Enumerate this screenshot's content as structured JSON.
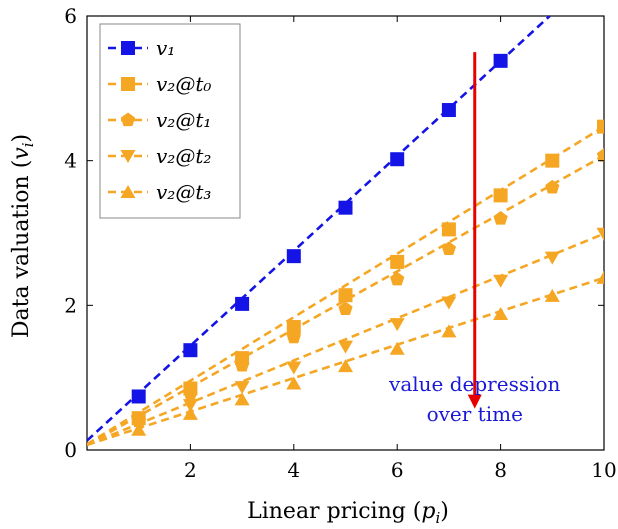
{
  "chart_data": {
    "type": "line",
    "xlabel": "Linear pricing (p_i)",
    "ylabel": "Data valuation (v_i)",
    "xlim": [
      0,
      10
    ],
    "ylim": [
      0,
      6
    ],
    "x_ticks": [
      "2",
      "4",
      "6",
      "8",
      "10"
    ],
    "y_ticks": [
      "0",
      "2",
      "4",
      "6"
    ],
    "grid": false,
    "legend_position": "top-left",
    "series": [
      {
        "name": "v_1",
        "color": "#1414e6",
        "marker": "square",
        "x": [
          1,
          2,
          3,
          4,
          5,
          6,
          7,
          8
        ],
        "y": [
          0.74,
          1.38,
          2.02,
          2.68,
          3.35,
          4.02,
          4.7,
          5.38
        ],
        "trend": [
          [
            0,
            0.13
          ],
          [
            8.95,
            6.0
          ]
        ]
      },
      {
        "name": "v_2@t_0",
        "color": "#f5a623",
        "marker": "square",
        "x": [
          1,
          2,
          3,
          4,
          5,
          6,
          7,
          8,
          9,
          10
        ],
        "y": [
          0.44,
          0.85,
          1.27,
          1.7,
          2.14,
          2.6,
          3.05,
          3.52,
          4.0,
          4.47
        ],
        "trend": [
          [
            0,
            0.08
          ],
          [
            10,
            4.47
          ]
        ]
      },
      {
        "name": "v_2@t_1",
        "color": "#f5a623",
        "marker": "pentagon",
        "x": [
          1,
          2,
          3,
          4,
          5,
          6,
          7,
          8,
          9,
          10
        ],
        "y": [
          0.4,
          0.78,
          1.17,
          1.56,
          1.95,
          2.36,
          2.78,
          3.2,
          3.63,
          4.07
        ],
        "trend": [
          [
            0,
            0.07
          ],
          [
            10,
            4.07
          ]
        ]
      },
      {
        "name": "v_2@t_2",
        "color": "#f5a623",
        "marker": "triangle-down",
        "x": [
          1,
          2,
          3,
          4,
          5,
          6,
          7,
          8,
          9,
          10
        ],
        "y": [
          0.36,
          0.62,
          0.87,
          1.14,
          1.43,
          1.74,
          2.04,
          2.34,
          2.66,
          2.99
        ],
        "trend": [
          [
            0,
            0.07
          ],
          [
            10,
            2.99
          ]
        ]
      },
      {
        "name": "v_2@t_3",
        "color": "#f5a623",
        "marker": "triangle-up",
        "x": [
          1,
          2,
          3,
          4,
          5,
          6,
          7,
          8,
          9,
          10
        ],
        "y": [
          0.28,
          0.5,
          0.7,
          0.92,
          1.16,
          1.4,
          1.64,
          1.88,
          2.13,
          2.38
        ],
        "trend": [
          [
            0,
            0.07
          ],
          [
            10,
            2.38
          ]
        ]
      }
    ],
    "annotations": [
      {
        "text_lines": [
          "value depression",
          "over time"
        ],
        "color": "#1a1ad6",
        "arrow": {
          "color": "#e60000",
          "x": 7.5,
          "y_from": 5.5,
          "y_to": 0.6
        }
      }
    ]
  }
}
